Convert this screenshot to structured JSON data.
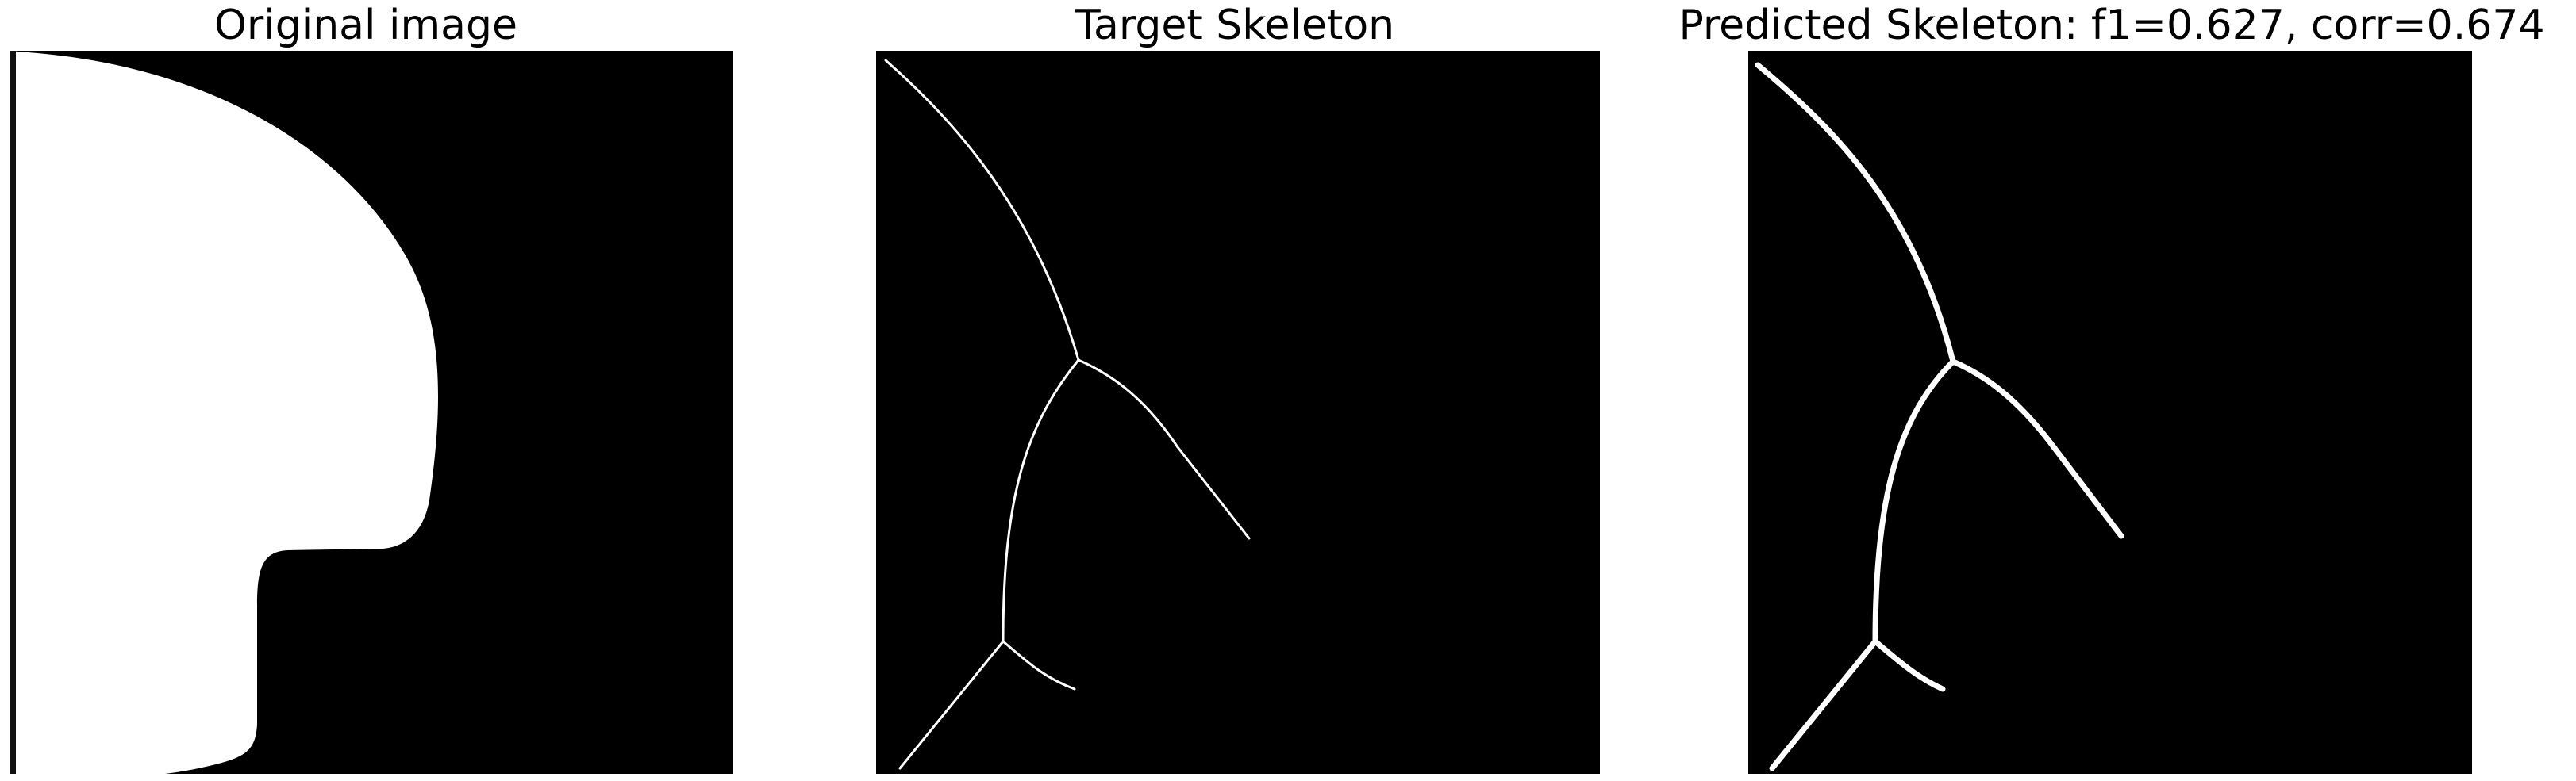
{
  "panels": [
    {
      "title": "Original image",
      "content": "binary-shape",
      "colors": {
        "background": "#000000",
        "foreground": "#ffffff"
      }
    },
    {
      "title": "Target Skeleton",
      "content": "skeleton-thin",
      "colors": {
        "background": "#000000",
        "foreground": "#ffffff"
      }
    },
    {
      "title": "Predicted Skeleton: f1=0.627, corr=0.674",
      "content": "skeleton-thick",
      "colors": {
        "background": "#000000",
        "foreground": "#ffffff"
      }
    }
  ]
}
